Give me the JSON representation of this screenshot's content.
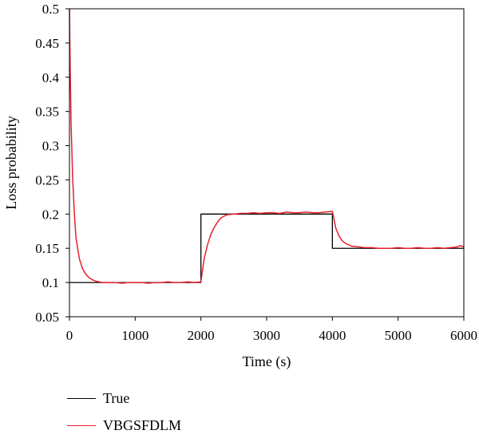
{
  "chart_data": {
    "type": "line",
    "title": "",
    "xlabel": "Time (s)",
    "ylabel": "Loss probability",
    "xlim": [
      0,
      6000
    ],
    "ylim": [
      0.05,
      0.5
    ],
    "x_ticks": [
      "0",
      "1000",
      "2000",
      "3000",
      "4000",
      "5000",
      "6000"
    ],
    "y_ticks": [
      "0.05",
      "0.1",
      "0.15",
      "0.2",
      "0.25",
      "0.3",
      "0.35",
      "0.4",
      "0.45",
      "0.5"
    ],
    "grid": false,
    "legend_position": "bottom-left",
    "series": [
      {
        "name": "True",
        "color": "#000000",
        "x": [
          0,
          2000,
          2000,
          4000,
          4000,
          6000
        ],
        "y": [
          0.1,
          0.1,
          0.2,
          0.2,
          0.15,
          0.15
        ]
      },
      {
        "name": "VBGSFDLM",
        "color": "#e8202a",
        "x": [
          0,
          10,
          25,
          50,
          75,
          100,
          150,
          200,
          250,
          300,
          350,
          400,
          450,
          500,
          600,
          700,
          800,
          900,
          1000,
          1100,
          1200,
          1300,
          1400,
          1500,
          1600,
          1700,
          1800,
          1900,
          2000,
          2020,
          2050,
          2100,
          2150,
          2200,
          2250,
          2300,
          2350,
          2400,
          2500,
          2600,
          2700,
          2800,
          2900,
          3000,
          3100,
          3200,
          3300,
          3400,
          3500,
          3600,
          3700,
          3800,
          3900,
          4000,
          4020,
          4050,
          4100,
          4150,
          4200,
          4250,
          4300,
          4400,
          4500,
          4600,
          4700,
          4800,
          4900,
          5000,
          5100,
          5200,
          5300,
          5400,
          5500,
          5600,
          5700,
          5800,
          5900,
          5950,
          6000
        ],
        "y": [
          0.5,
          0.42,
          0.33,
          0.25,
          0.2,
          0.165,
          0.135,
          0.12,
          0.112,
          0.107,
          0.104,
          0.102,
          0.101,
          0.1,
          0.1,
          0.1,
          0.099,
          0.1,
          0.1,
          0.1,
          0.099,
          0.1,
          0.1,
          0.101,
          0.1,
          0.1,
          0.101,
          0.1,
          0.101,
          0.115,
          0.135,
          0.155,
          0.17,
          0.18,
          0.188,
          0.194,
          0.197,
          0.199,
          0.2,
          0.201,
          0.201,
          0.202,
          0.201,
          0.202,
          0.202,
          0.201,
          0.203,
          0.202,
          0.202,
          0.203,
          0.202,
          0.202,
          0.203,
          0.204,
          0.195,
          0.18,
          0.168,
          0.161,
          0.157,
          0.155,
          0.153,
          0.152,
          0.151,
          0.151,
          0.15,
          0.15,
          0.15,
          0.151,
          0.15,
          0.15,
          0.151,
          0.15,
          0.15,
          0.151,
          0.15,
          0.151,
          0.152,
          0.154,
          0.152
        ]
      }
    ]
  }
}
